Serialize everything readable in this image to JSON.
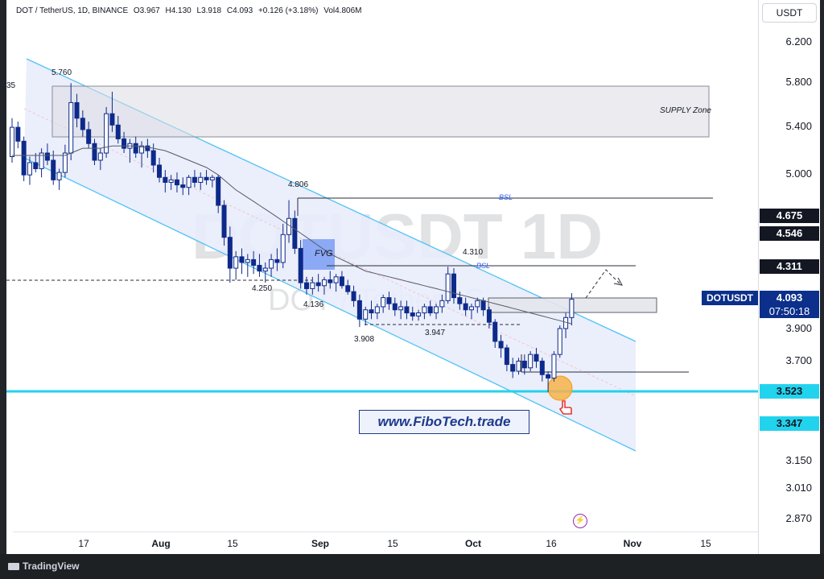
{
  "legend": {
    "symbol": "DOT / TetherUS, 1D, BINANCE",
    "open": "O3.967",
    "high": "H4.130",
    "low": "L3.918",
    "close": "C4.093",
    "change": "+0.126 (+3.18%)",
    "volume": "Vol4.806M"
  },
  "currency_button": "USDT",
  "watermark": {
    "ticker": "DOTUSDT  1D",
    "pair": "DOT / TetherUS"
  },
  "website": "www.FiboTech.trade",
  "footer_brand": "TradingView",
  "symbol_badge": {
    "symbol": "DOTUSDT",
    "price": "4.093",
    "countdown": "07:50:18",
    "color": "#0b2f8a"
  },
  "colors": {
    "accent_cyan": "#22d3ee",
    "channel_fill": "#e8ebfb",
    "fvg": "#7b9cf5",
    "bull": "#ffffff",
    "bear": "#0d2a8a"
  },
  "chart_data": {
    "type": "candlestick",
    "title": "DOT / TetherUS, 1D, BINANCE",
    "y_ticks": [
      "6.200",
      "5.800",
      "5.400",
      "5.000",
      "3.900",
      "3.700",
      "3.150",
      "3.010",
      "2.870"
    ],
    "y_scale": "log",
    "ylim": [
      2.78,
      6.7
    ],
    "x_ticks": [
      "17",
      "Aug",
      "15",
      "Sep",
      "15",
      "Oct",
      "16",
      "Nov",
      "15"
    ],
    "price_badges": [
      {
        "value": "4.675",
        "style": "dark"
      },
      {
        "value": "4.546",
        "style": "dark"
      },
      {
        "value": "4.311",
        "style": "dark"
      },
      {
        "value": "3.523",
        "style": "cyan"
      },
      {
        "value": "3.347",
        "style": "cyan"
      }
    ],
    "annotations": {
      "supply_zone": "SUPPLY Zone",
      "fvg": "FVG",
      "bsl_upper": "BSL",
      "bsl_lower": "BSL",
      "left_edge_label": "35",
      "price_labels": [
        "5.760",
        "4.806",
        "4.310",
        "4.250",
        "4.136",
        "3.908",
        "3.947"
      ]
    },
    "candles": [
      [
        5.15,
        5.48,
        5.1,
        5.4
      ],
      [
        5.4,
        5.45,
        5.22,
        5.28
      ],
      [
        5.28,
        5.32,
        4.95,
        5.0
      ],
      [
        5.0,
        5.15,
        4.92,
        5.1
      ],
      [
        5.1,
        5.18,
        5.02,
        5.05
      ],
      [
        5.05,
        5.22,
        4.98,
        5.18
      ],
      [
        5.18,
        5.26,
        5.08,
        5.12
      ],
      [
        5.12,
        5.2,
        4.92,
        4.96
      ],
      [
        4.96,
        5.05,
        4.88,
        5.02
      ],
      [
        5.02,
        5.25,
        4.98,
        5.18
      ],
      [
        5.18,
        5.8,
        5.12,
        5.62
      ],
      [
        5.62,
        5.7,
        5.4,
        5.48
      ],
      [
        5.48,
        5.55,
        5.32,
        5.38
      ],
      [
        5.38,
        5.45,
        5.22,
        5.26
      ],
      [
        5.26,
        5.3,
        5.08,
        5.12
      ],
      [
        5.12,
        5.22,
        5.04,
        5.18
      ],
      [
        5.18,
        5.58,
        5.14,
        5.52
      ],
      [
        5.52,
        5.72,
        5.36,
        5.42
      ],
      [
        5.42,
        5.5,
        5.26,
        5.3
      ],
      [
        5.3,
        5.36,
        5.18,
        5.22
      ],
      [
        5.22,
        5.3,
        5.1,
        5.26
      ],
      [
        5.26,
        5.32,
        5.14,
        5.18
      ],
      [
        5.18,
        5.28,
        5.06,
        5.24
      ],
      [
        5.24,
        5.3,
        5.14,
        5.2
      ],
      [
        5.2,
        5.26,
        5.02,
        5.08
      ],
      [
        5.08,
        5.14,
        4.94,
        4.98
      ],
      [
        4.98,
        5.04,
        4.86,
        4.94
      ],
      [
        4.94,
        5.0,
        4.88,
        4.96
      ],
      [
        4.96,
        5.02,
        4.86,
        4.92
      ],
      [
        4.92,
        4.98,
        4.84,
        4.9
      ],
      [
        4.9,
        5.0,
        4.84,
        4.98
      ],
      [
        4.98,
        5.04,
        4.9,
        4.94
      ],
      [
        4.94,
        5.02,
        4.88,
        4.98
      ],
      [
        4.98,
        5.04,
        4.92,
        4.96
      ],
      [
        4.96,
        5.0,
        4.9,
        4.98
      ],
      [
        4.98,
        5.0,
        4.7,
        4.76
      ],
      [
        4.76,
        4.8,
        4.46,
        4.52
      ],
      [
        4.52,
        4.6,
        4.2,
        4.3
      ],
      [
        4.3,
        4.42,
        4.22,
        4.38
      ],
      [
        4.38,
        4.44,
        4.26,
        4.34
      ],
      [
        4.34,
        4.4,
        4.24,
        4.36
      ],
      [
        4.36,
        4.42,
        4.26,
        4.32
      ],
      [
        4.32,
        4.4,
        4.24,
        4.28
      ],
      [
        4.28,
        4.34,
        4.2,
        4.3
      ],
      [
        4.3,
        4.4,
        4.24,
        4.36
      ],
      [
        4.36,
        4.44,
        4.28,
        4.34
      ],
      [
        4.34,
        4.62,
        4.3,
        4.54
      ],
      [
        4.54,
        4.8,
        4.48,
        4.66
      ],
      [
        4.66,
        4.72,
        4.4,
        4.44
      ],
      [
        4.44,
        4.5,
        4.16,
        4.2
      ],
      [
        4.2,
        4.24,
        4.12,
        4.16
      ],
      [
        4.16,
        4.24,
        4.12,
        4.2
      ],
      [
        4.2,
        4.26,
        4.14,
        4.18
      ],
      [
        4.18,
        4.24,
        4.12,
        4.22
      ],
      [
        4.22,
        4.28,
        4.16,
        4.2
      ],
      [
        4.2,
        4.26,
        4.14,
        4.24
      ],
      [
        4.24,
        4.28,
        4.16,
        4.18
      ],
      [
        4.18,
        4.22,
        4.12,
        4.14
      ],
      [
        4.14,
        4.18,
        4.04,
        4.08
      ],
      [
        4.08,
        4.12,
        3.91,
        3.96
      ],
      [
        3.96,
        4.04,
        3.92,
        4.02
      ],
      [
        4.02,
        4.08,
        3.96,
        4.0
      ],
      [
        4.0,
        4.06,
        3.96,
        4.04
      ],
      [
        4.04,
        4.12,
        4.0,
        4.1
      ],
      [
        4.1,
        4.14,
        4.02,
        4.06
      ],
      [
        4.06,
        4.1,
        3.98,
        4.02
      ],
      [
        4.02,
        4.08,
        3.96,
        4.04
      ],
      [
        4.04,
        4.08,
        3.96,
        4.0
      ],
      [
        4.0,
        4.04,
        3.95,
        3.98
      ],
      [
        3.98,
        4.02,
        3.95,
        4.0
      ],
      [
        4.0,
        4.06,
        3.96,
        4.04
      ],
      [
        4.04,
        4.08,
        3.98,
        4.0
      ],
      [
        4.0,
        4.06,
        3.96,
        4.04
      ],
      [
        4.04,
        4.12,
        4.0,
        4.08
      ],
      [
        4.08,
        4.31,
        4.06,
        4.26
      ],
      [
        4.26,
        4.3,
        4.06,
        4.1
      ],
      [
        4.1,
        4.14,
        4.02,
        4.06
      ],
      [
        4.06,
        4.1,
        3.98,
        4.02
      ],
      [
        4.02,
        4.06,
        3.96,
        4.04
      ],
      [
        4.04,
        4.1,
        4.0,
        4.08
      ],
      [
        4.08,
        4.1,
        3.98,
        4.02
      ],
      [
        4.02,
        4.04,
        3.9,
        3.94
      ],
      [
        3.94,
        3.96,
        3.78,
        3.82
      ],
      [
        3.82,
        3.86,
        3.72,
        3.78
      ],
      [
        3.78,
        3.8,
        3.64,
        3.68
      ],
      [
        3.68,
        3.72,
        3.6,
        3.64
      ],
      [
        3.64,
        3.72,
        3.62,
        3.7
      ],
      [
        3.7,
        3.74,
        3.62,
        3.66
      ],
      [
        3.66,
        3.76,
        3.64,
        3.74
      ],
      [
        3.74,
        3.78,
        3.66,
        3.7
      ],
      [
        3.7,
        3.72,
        3.58,
        3.62
      ],
      [
        3.62,
        3.64,
        3.52,
        3.6
      ],
      [
        3.6,
        3.76,
        3.58,
        3.74
      ],
      [
        3.74,
        3.92,
        3.72,
        3.9
      ],
      [
        3.9,
        4.0,
        3.84,
        3.97
      ],
      [
        3.97,
        4.13,
        3.92,
        4.09
      ]
    ],
    "ma": [
      5.16,
      5.16,
      5.16,
      5.16,
      5.16,
      5.16,
      5.16,
      5.16,
      5.16,
      5.16,
      5.18,
      5.2,
      5.22,
      5.22,
      5.22,
      5.22,
      5.23,
      5.24,
      5.24,
      5.24,
      5.24,
      5.24,
      5.23,
      5.23,
      5.22,
      5.21,
      5.2,
      5.18,
      5.16,
      5.14,
      5.12,
      5.1,
      5.08,
      5.06,
      5.03,
      5.0,
      4.96,
      4.92,
      4.88,
      4.85,
      4.82,
      4.79,
      4.76,
      4.73,
      4.7,
      4.67,
      4.64,
      4.61,
      4.58,
      4.55,
      4.52,
      4.49,
      4.46,
      4.43,
      4.4,
      4.38,
      4.36,
      4.34,
      4.32,
      4.3,
      4.28,
      4.27,
      4.26,
      4.25,
      4.24,
      4.23,
      4.22,
      4.21,
      4.2,
      4.19,
      4.18,
      4.17,
      4.16,
      4.15,
      4.14,
      4.13,
      4.12,
      4.11,
      4.1,
      4.09,
      4.08,
      4.07,
      4.06,
      4.05,
      4.04,
      4.03,
      4.02,
      4.01,
      4.0,
      3.99,
      3.98,
      3.97,
      3.96,
      3.95,
      3.94,
      3.93
    ]
  }
}
